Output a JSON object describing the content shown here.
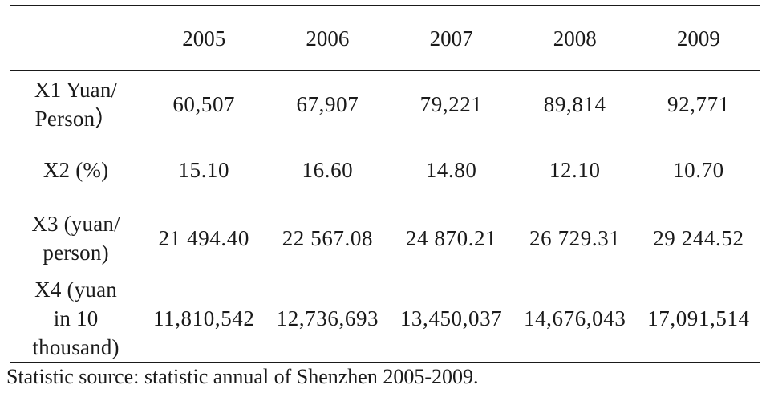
{
  "table": {
    "header": {
      "corner": "",
      "years": [
        "2005",
        "2006",
        "2007",
        "2008",
        "2009"
      ]
    },
    "rows": [
      {
        "label_lines": [
          "X1 Yuan/",
          "Person）"
        ],
        "values": [
          "60,507",
          "67,907",
          "79,221",
          "89,814",
          "92,771"
        ]
      },
      {
        "label_lines": [
          "X2 (%)"
        ],
        "values": [
          "15.10",
          "16.60",
          "14.80",
          "12.10",
          "10.70"
        ]
      },
      {
        "label_lines": [
          "X3 (yuan/",
          "person)"
        ],
        "values": [
          "21 494.40",
          "22 567.08",
          "24 870.21",
          "26 729.31",
          "29 244.52"
        ]
      },
      {
        "label_lines": [
          "X4 (yuan",
          "in 10",
          "thousand)"
        ],
        "values": [
          "11,810,542",
          "12,736,693",
          "13,450,037",
          "14,676,043",
          "17,091,514"
        ]
      }
    ]
  },
  "footer": {
    "source": "Statistic source: statistic annual of Shenzhen 2005-2009."
  }
}
